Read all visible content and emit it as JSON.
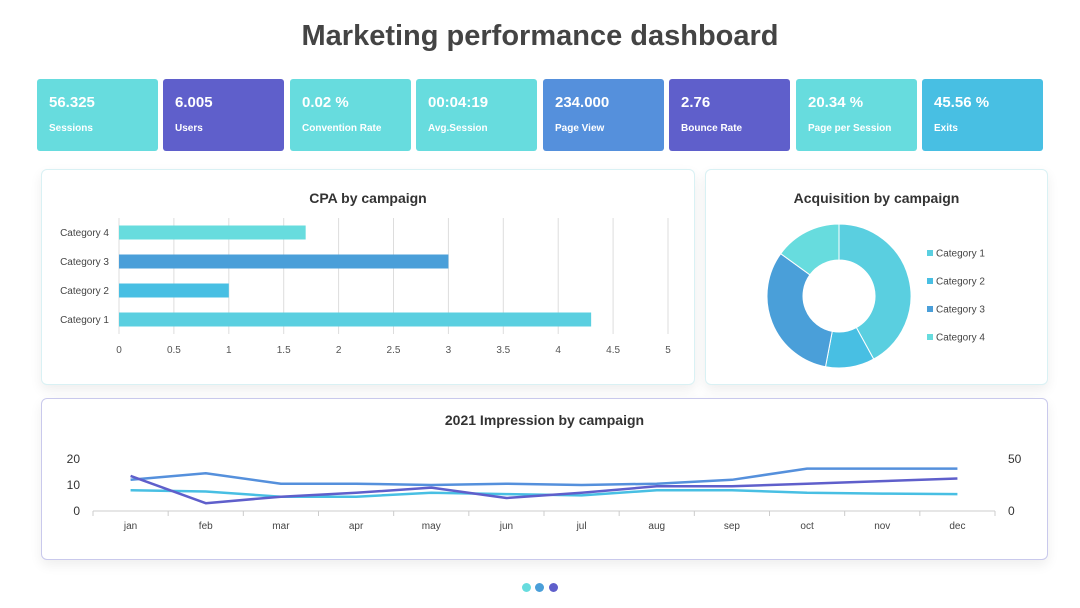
{
  "page": {
    "title": "Marketing performance dashboard"
  },
  "kpis": [
    {
      "value": "56.325",
      "label": "Sessions",
      "color": "#67DCDE"
    },
    {
      "value": "6.005",
      "label": "Users",
      "color": "#5F5FCB"
    },
    {
      "value": "0.02 %",
      "label": "Convention Rate",
      "color": "#67DCDE"
    },
    {
      "value": "00:04:19",
      "label": "Avg.Session",
      "color": "#67DCDE"
    },
    {
      "value": "234.000",
      "label": "Page View",
      "color": "#5590DC"
    },
    {
      "value": "2.76",
      "label": "Bounce Rate",
      "color": "#5F5FCB"
    },
    {
      "value": "20.34 %",
      "label": "Page per Session",
      "color": "#67DCDE"
    },
    {
      "value": "45.56 %",
      "label": "Exits",
      "color": "#48BFE3"
    }
  ],
  "chart_data": [
    {
      "type": "bar",
      "orientation": "horizontal",
      "title": "CPA by campaign",
      "categories": [
        "Category 1",
        "Category 2",
        "Category 3",
        "Category 4"
      ],
      "values": [
        4.3,
        1,
        3,
        1.7
      ],
      "colors": [
        "#5ACFE0",
        "#48BFE3",
        "#4A9FD9",
        "#67DCDE"
      ],
      "xlim": [
        0,
        5
      ],
      "xticks": [
        "0",
        "0.5",
        "1",
        "1.5",
        "2",
        "2.5",
        "3",
        "3.5",
        "4",
        "4.5",
        "5"
      ],
      "grid": true
    },
    {
      "type": "pie",
      "donut": true,
      "title": "Acquisition by campaign",
      "labels": [
        "Category 1",
        "Category 2",
        "Category 3",
        "Category 4"
      ],
      "values": [
        42,
        11,
        32,
        15
      ],
      "colors": [
        "#5ACFE0",
        "#48BFE3",
        "#4A9FD9",
        "#67DCDE"
      ],
      "legend": "right"
    },
    {
      "type": "line",
      "title": "2021 Impression by campaign",
      "categories": [
        "jan",
        "feb",
        "mar",
        "apr",
        "may",
        "jun",
        "jul",
        "aug",
        "sep",
        "oct",
        "nov",
        "dec"
      ],
      "ylim_left": [
        0,
        20
      ],
      "yticks_left": [
        "0",
        "10",
        "20"
      ],
      "ylim_right": [
        0,
        50
      ],
      "yticks_right": [
        "0",
        "50"
      ],
      "series": [
        {
          "axis": "left",
          "color": "#5590DC",
          "values": [
            12,
            14.5,
            10.5,
            10.5,
            10,
            10.5,
            10,
            10.5,
            12,
            16.3,
            16.3,
            16.3
          ]
        },
        {
          "axis": "left",
          "color": "#48BFE3",
          "values": [
            8,
            7.5,
            5.5,
            5.5,
            7,
            6.5,
            6,
            8,
            8,
            7,
            6.7,
            6.5
          ]
        },
        {
          "axis": "left",
          "color": "#5F5FCB",
          "values": [
            13.5,
            3,
            5.5,
            7,
            9,
            5,
            7,
            9.5,
            9.5,
            10.5,
            11.5,
            12.5
          ]
        }
      ]
    }
  ],
  "pager": {
    "colors": [
      "#67DCDE",
      "#4A9FD9",
      "#5F5FCB"
    ]
  }
}
